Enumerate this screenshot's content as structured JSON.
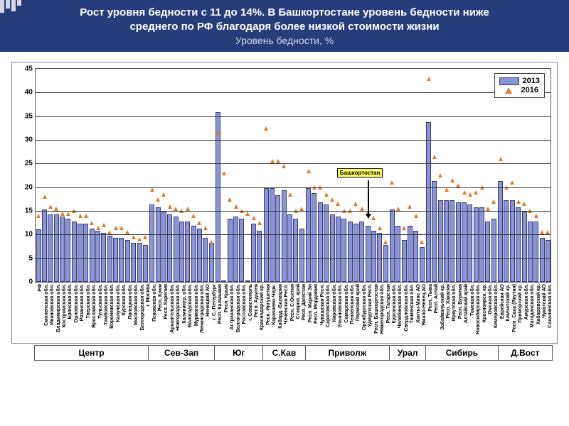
{
  "header": {
    "title_line1": "Рост уровня бедности с 11 до 14%. В Башкортостане уровень бедности ниже",
    "title_line2": "среднего по РФ благодаря более низкой стоимости жизни",
    "subtitle": "Уровень бедности, %"
  },
  "chart": {
    "type": "bar+scatter",
    "ylim": [
      0,
      45
    ],
    "ytick_step": 5,
    "bar_color": "#8a95d8",
    "bar_border": "#3a3a7a",
    "marker_color": "#e07a2c",
    "marker_size": 7,
    "grid_color": "#333333",
    "background": "#ffffff",
    "callout": {
      "text": "Башкортостан",
      "index": 55,
      "y": 22
    },
    "legend": [
      {
        "label": "2013",
        "kind": "bar"
      },
      {
        "label": "2016",
        "kind": "tri"
      }
    ],
    "groups": [
      {
        "label": "Центр",
        "span": 19
      },
      {
        "label": "Сев-Зап",
        "span": 11
      },
      {
        "label": "Юг",
        "span": 8
      },
      {
        "label": "С.Кав",
        "span": 7
      },
      {
        "label": "Приволж",
        "span": 14
      },
      {
        "label": "Урал",
        "span": 6
      },
      {
        "label": "Сибирь",
        "span": 12
      },
      {
        "label": "Д.Вост",
        "span": 9
      }
    ],
    "data": [
      {
        "l": "РФ",
        "b": 10.8,
        "t": 13.5
      },
      {
        "l": "Смоленская обл.",
        "b": 15,
        "t": 17.5
      },
      {
        "l": "Ивановская обл.",
        "b": 14,
        "t": 15.5
      },
      {
        "l": "Владимирская обл.",
        "b": 14,
        "t": 15
      },
      {
        "l": "Костромская обл.",
        "b": 13.5,
        "t": 14
      },
      {
        "l": "Брянская обл.",
        "b": 13,
        "t": 14
      },
      {
        "l": "Орловская обл.",
        "b": 12.5,
        "t": 14.5
      },
      {
        "l": "Рязанская обл.",
        "b": 12,
        "t": 13.5
      },
      {
        "l": "Тверская обл.",
        "b": 12,
        "t": 13.5
      },
      {
        "l": "Ярославская обл.",
        "b": 11,
        "t": 12
      },
      {
        "l": "Тульская обл.",
        "b": 10.5,
        "t": 11
      },
      {
        "l": "Тамбовская обл.",
        "b": 10,
        "t": 11.5
      },
      {
        "l": "Воронежская обл.",
        "b": 9.5,
        "t": 10
      },
      {
        "l": "Калужская обл.",
        "b": 9,
        "t": 11
      },
      {
        "l": "Курская обл.",
        "b": 9,
        "t": 11
      },
      {
        "l": "Липецкая обл.",
        "b": 8.5,
        "t": 10
      },
      {
        "l": "Московская обл.",
        "b": 8,
        "t": 9
      },
      {
        "l": "Белгородская обл.",
        "b": 8,
        "t": 8.5
      },
      {
        "l": "г. Москва",
        "b": 7.5,
        "t": 9
      },
      {
        "g": 1
      },
      {
        "l": "Псковская обл.",
        "b": 16,
        "t": 19
      },
      {
        "l": "Респ. Коми",
        "b": 15.5,
        "t": 17
      },
      {
        "l": "Респ. Карелия",
        "b": 14.5,
        "t": 18
      },
      {
        "l": "Архангельская обл.",
        "b": 14,
        "t": 15.5
      },
      {
        "l": "Новгородская обл.",
        "b": 13.5,
        "t": 15
      },
      {
        "l": "Калинингр. обл.",
        "b": 12.5,
        "t": 14.5
      },
      {
        "l": "Вологодская обл.",
        "b": 12.5,
        "t": 15
      },
      {
        "l": "Мурманская обл.",
        "b": 11.5,
        "t": 13.5
      },
      {
        "l": "Ленинградская обл.",
        "b": 11,
        "t": 12
      },
      {
        "l": "Ненецкий АО",
        "b": 9,
        "t": 11
      },
      {
        "l": "г. С.-Петербург",
        "b": 8,
        "t": 8
      },
      {
        "g": 1
      },
      {
        "l": "Респ. Калмыкия",
        "b": 35.5,
        "t": 31
      },
      {
        "l": "Респ. Крым",
        "b": 0,
        "t": 22.5
      },
      {
        "l": "Астраханская обл.",
        "b": 13,
        "t": 17
      },
      {
        "l": "Волгоградская обл.",
        "b": 13.5,
        "t": 15.5
      },
      {
        "l": "Ростовская обл.",
        "b": 13,
        "t": 14.5
      },
      {
        "l": "г. Севастополь",
        "b": 0,
        "t": 14
      },
      {
        "l": "Респ. Адыгея",
        "b": 12,
        "t": 13
      },
      {
        "l": "Краснодарский кр.",
        "b": 10.5,
        "t": 12
      },
      {
        "g": 1
      },
      {
        "l": "Респ. Ингушетия",
        "b": 19.5,
        "t": 32
      },
      {
        "l": "Карачаево-Черк.",
        "b": 19.5,
        "t": 25
      },
      {
        "l": "Кабард.-Балкария",
        "b": 18,
        "t": 25
      },
      {
        "l": "Чеченская Респ.",
        "b": 19,
        "t": 24
      },
      {
        "l": "Респ. С.Осетия",
        "b": 14,
        "t": 18
      },
      {
        "l": "Ставроп. край",
        "b": 13,
        "t": 14.5
      },
      {
        "l": "Респ. Дагестан",
        "b": 11,
        "t": 15
      },
      {
        "g": 1
      },
      {
        "l": "Респ. Марий Эл",
        "b": 19.5,
        "t": 23
      },
      {
        "l": "Респ. Мордовия",
        "b": 18.5,
        "t": 19.5
      },
      {
        "l": "Чувашская Респ.",
        "b": 16.5,
        "t": 19.5
      },
      {
        "l": "Саратовская обл.",
        "b": 16,
        "t": 18
      },
      {
        "l": "Кировская обл.",
        "b": 14,
        "t": 17
      },
      {
        "l": "Ульяновская обл.",
        "b": 13.5,
        "t": 16
      },
      {
        "l": "Самарская обл.",
        "b": 13,
        "t": 14.5
      },
      {
        "l": "Пензенская обл.",
        "b": 12.5,
        "t": 14.5
      },
      {
        "l": "Пермский край",
        "b": 12,
        "t": 16
      },
      {
        "l": "Оренбургская обл.",
        "b": 12.5,
        "t": 15
      },
      {
        "l": "Удмуртская Респ.",
        "b": 11.5,
        "t": 14
      },
      {
        "l": "Респ. Башкортостан",
        "b": 10.5,
        "t": 13
      },
      {
        "l": "Нижегородская обл.",
        "b": 10,
        "t": 11
      },
      {
        "l": "Респ. Татарстан",
        "b": 7.5,
        "t": 8
      },
      {
        "g": 1
      },
      {
        "l": "Курганская обл.",
        "b": 15,
        "t": 20.5
      },
      {
        "l": "Челябинская обл.",
        "b": 11.5,
        "t": 15
      },
      {
        "l": "Свердловская обл.",
        "b": 8.5,
        "t": 11
      },
      {
        "l": "Тюменская обл.",
        "b": 11.5,
        "t": 15.5
      },
      {
        "l": "Ханты-Манс АО",
        "b": 10.5,
        "t": 13.5
      },
      {
        "l": "Ямало-Ненец.АО",
        "b": 7,
        "t": 8
      },
      {
        "g": 1
      },
      {
        "l": "Респ. Тыва",
        "b": 33.5,
        "t": 42.5
      },
      {
        "l": "Респ. Алтай",
        "b": 21,
        "t": 26
      },
      {
        "l": "Забайкальский кр.",
        "b": 17,
        "t": 22
      },
      {
        "l": "Респ. Хакасия",
        "b": 17,
        "t": 19
      },
      {
        "l": "Иркутская обл.",
        "b": 17,
        "t": 21
      },
      {
        "l": "Респ. Бурятия",
        "b": 16.5,
        "t": 20
      },
      {
        "l": "Алтайский край",
        "b": 16.5,
        "t": 18.5
      },
      {
        "l": "Томская обл.",
        "b": 16,
        "t": 18
      },
      {
        "l": "Новосибирская обл.",
        "b": 15.5,
        "t": 18.5
      },
      {
        "l": "Красноярск. кр.",
        "b": 15.5,
        "t": 19.5
      },
      {
        "l": "Омская обл.",
        "b": 12.5,
        "t": 15
      },
      {
        "l": "Кемеровская обл.",
        "b": 13,
        "t": 16.5
      },
      {
        "g": 1
      },
      {
        "l": "Еврейская АО",
        "b": 21,
        "t": 25.5
      },
      {
        "l": "Камчатский кр.",
        "b": 17,
        "t": 19.5
      },
      {
        "l": "Респ. Саха (Якутия)",
        "b": 17,
        "t": 20.5
      },
      {
        "l": "Приморский кр.",
        "b": 15.5,
        "t": 16.5
      },
      {
        "l": "Амурская обл.",
        "b": 14.5,
        "t": 16
      },
      {
        "l": "Магаданская обл.",
        "b": 12.5,
        "t": 14.5
      },
      {
        "l": "Хабаровский кр.",
        "b": 12.5,
        "t": 13.5
      },
      {
        "l": "Чукотский АО",
        "b": 9,
        "t": 10
      },
      {
        "l": "Сахалинская обл.",
        "b": 8.5,
        "t": 10
      }
    ]
  }
}
